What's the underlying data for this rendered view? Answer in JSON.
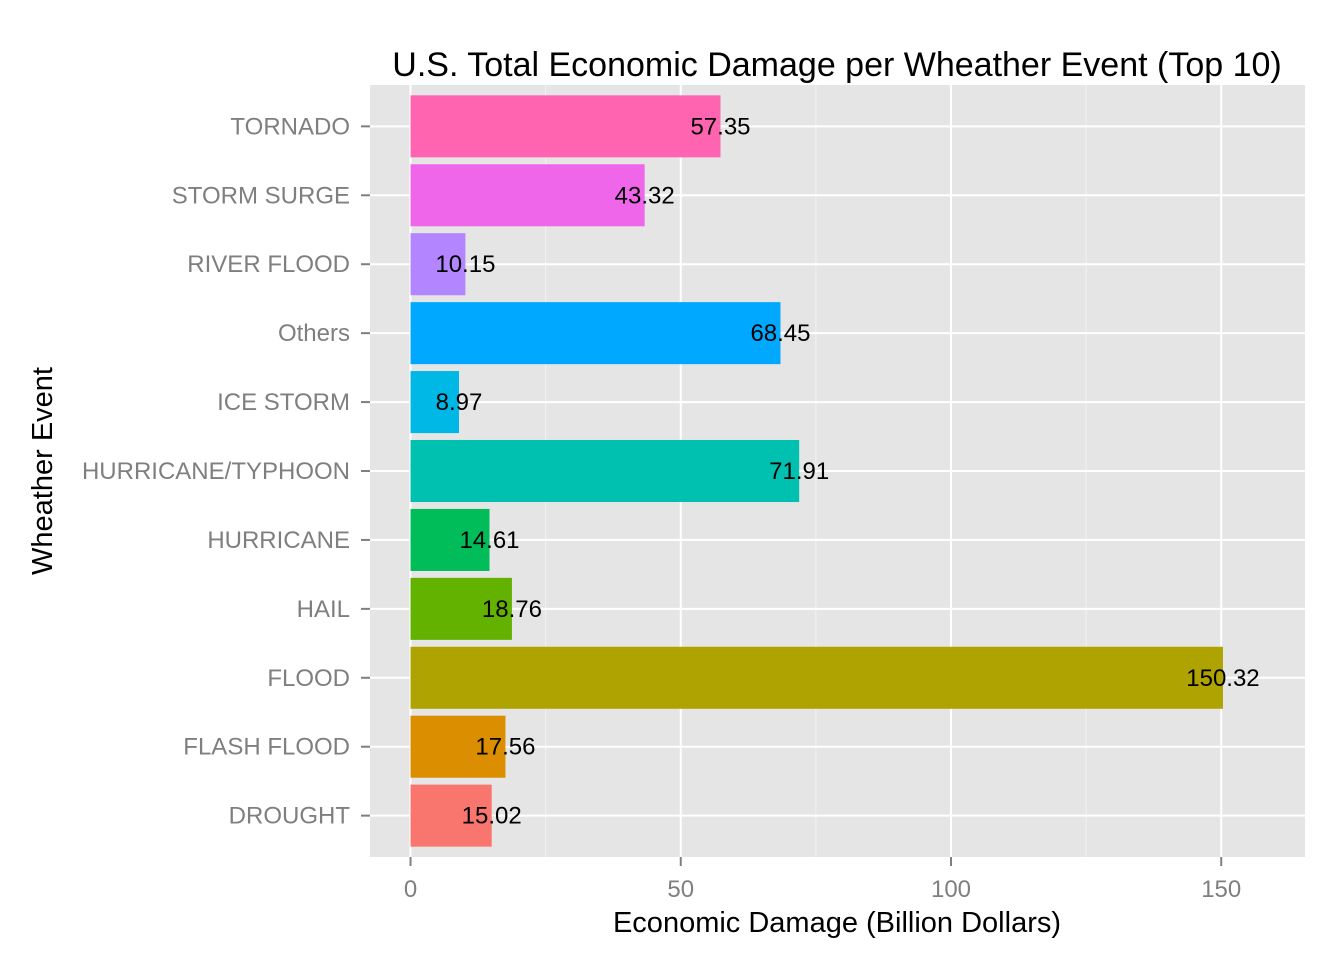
{
  "chart_data": {
    "type": "bar",
    "orientation": "horizontal",
    "title": "U.S. Total Economic Damage per Wheather Event (Top 10)",
    "xlabel": "Economic Damage (Billion Dollars)",
    "ylabel": "Wheather Event",
    "xlim": [
      -7.5,
      165.5
    ],
    "x_ticks": [
      0,
      50,
      100,
      150
    ],
    "x_tick_labels": [
      "0",
      "50",
      "100",
      "150"
    ],
    "grid": true,
    "legend": "none",
    "panel_background": "#e5e5e5",
    "grid_color": "#ffffff",
    "categories": [
      "TORNADO",
      "STORM SURGE",
      "RIVER FLOOD",
      "Others",
      "ICE STORM",
      "HURRICANE/TYPHOON",
      "HURRICANE",
      "HAIL",
      "FLOOD",
      "FLASH FLOOD",
      "DROUGHT"
    ],
    "values": [
      57.35,
      43.32,
      10.15,
      68.45,
      8.97,
      71.91,
      14.61,
      18.76,
      150.32,
      17.56,
      15.02
    ],
    "value_labels": [
      "57.35",
      "43.32",
      "10.15",
      "68.45",
      "8.97",
      "71.91",
      "14.61",
      "18.76",
      "150.32",
      "17.56",
      "15.02"
    ],
    "colors": [
      "#ff64b0",
      "#f066ea",
      "#b385ff",
      "#00a9ff",
      "#00b8e5",
      "#00c0af",
      "#00bc59",
      "#64b200",
      "#aea300",
      "#db8e00",
      "#f8766d"
    ]
  }
}
